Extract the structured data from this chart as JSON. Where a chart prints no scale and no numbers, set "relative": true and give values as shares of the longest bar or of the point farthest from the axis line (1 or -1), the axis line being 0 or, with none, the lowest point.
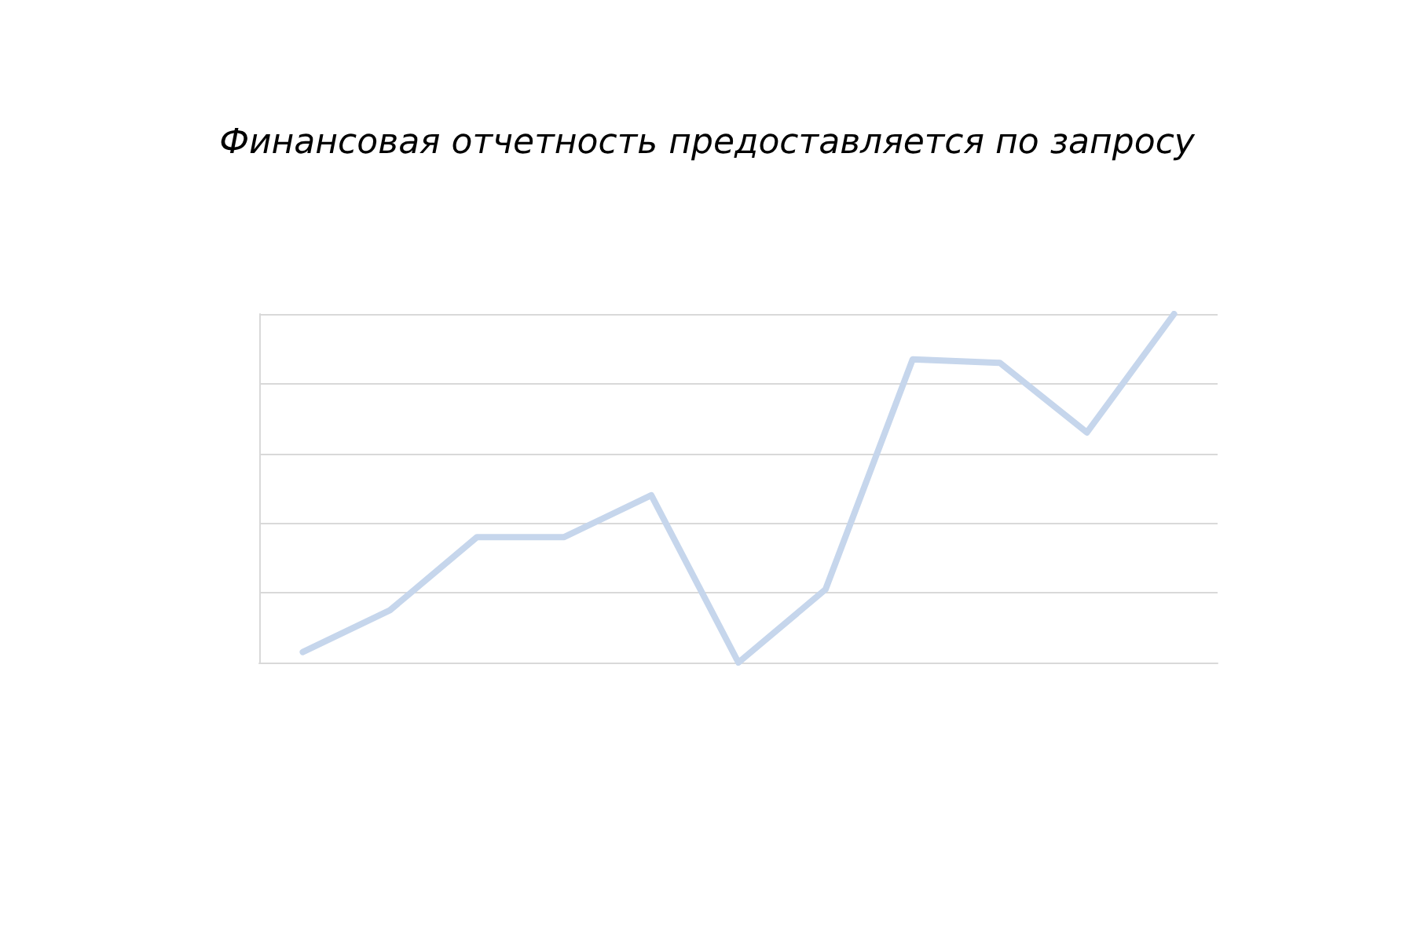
{
  "chart_data": {
    "type": "line",
    "title": "Финансовая отчетность предоставляется по запросу",
    "relative": true,
    "grid": "y",
    "marker": "none",
    "line_style": "solid",
    "categories": [
      null,
      null,
      null,
      null,
      null,
      null,
      null,
      null,
      null,
      null,
      null
    ],
    "series": [
      {
        "color": "#c6d6ec",
        "values": [
          0.03,
          0.15,
          0.36,
          0.36,
          0.48,
          0,
          0.21,
          0.87,
          0.86,
          0.66,
          1
        ]
      }
    ]
  }
}
